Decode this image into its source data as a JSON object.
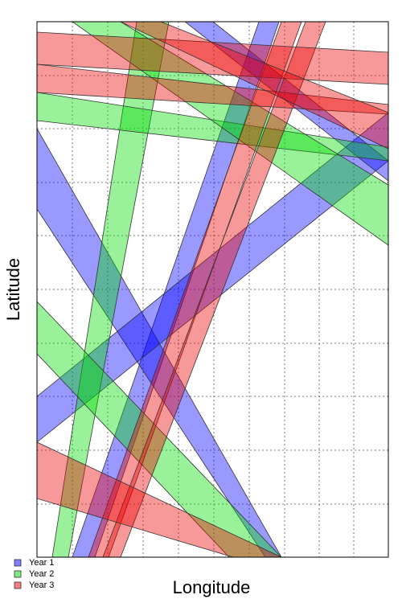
{
  "chart_data": {
    "type": "polygon",
    "x_label": "Longitude",
    "y_label": "Latitude",
    "series": [
      {
        "name": "Year 1",
        "color": "#0000ff"
      },
      {
        "name": "Year 2",
        "color": "#00dd00"
      },
      {
        "name": "Year 3",
        "color": "#ee0000"
      }
    ]
  }
}
